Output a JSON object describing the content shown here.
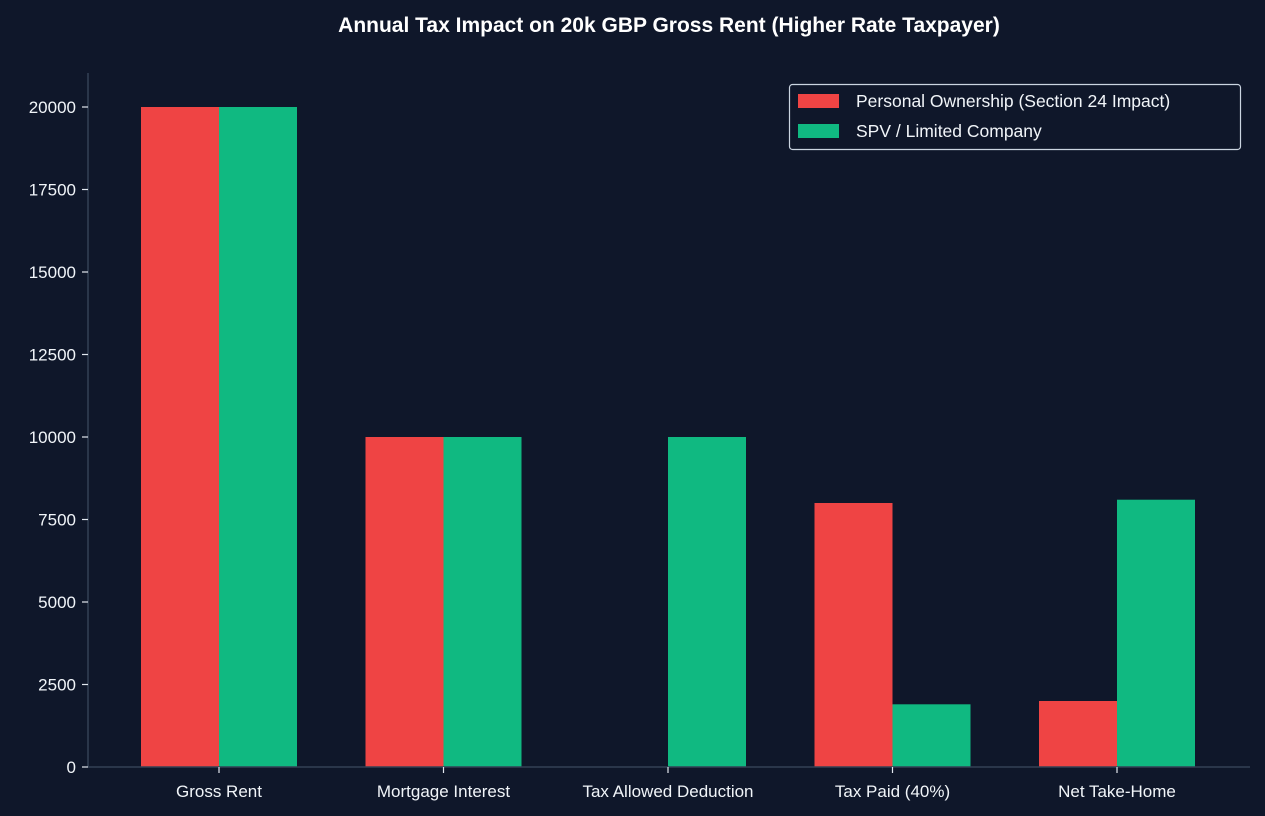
{
  "chart_data": {
    "type": "bar",
    "title": "Annual Tax Impact on 20k GBP Gross Rent (Higher Rate Taxpayer)",
    "xlabel": "",
    "ylabel": "",
    "categories": [
      "Gross Rent",
      "Mortgage Interest",
      "Tax Allowed Deduction",
      "Tax Paid (40%)",
      "Net Take-Home"
    ],
    "series": [
      {
        "name": "Personal Ownership (Section 24 Impact)",
        "color": "#ef4444",
        "values": [
          20000,
          10000,
          0,
          8000,
          2000
        ]
      },
      {
        "name": "SPV / Limited Company",
        "color": "#10b981",
        "values": [
          20000,
          10000,
          10000,
          1900,
          8100
        ]
      }
    ],
    "ylim": [
      0,
      21000
    ],
    "yticks": [
      0,
      2500,
      5000,
      7500,
      10000,
      12500,
      15000,
      17500,
      20000
    ],
    "grid": false,
    "legend_position": "top-right",
    "background": "#0f172a"
  }
}
